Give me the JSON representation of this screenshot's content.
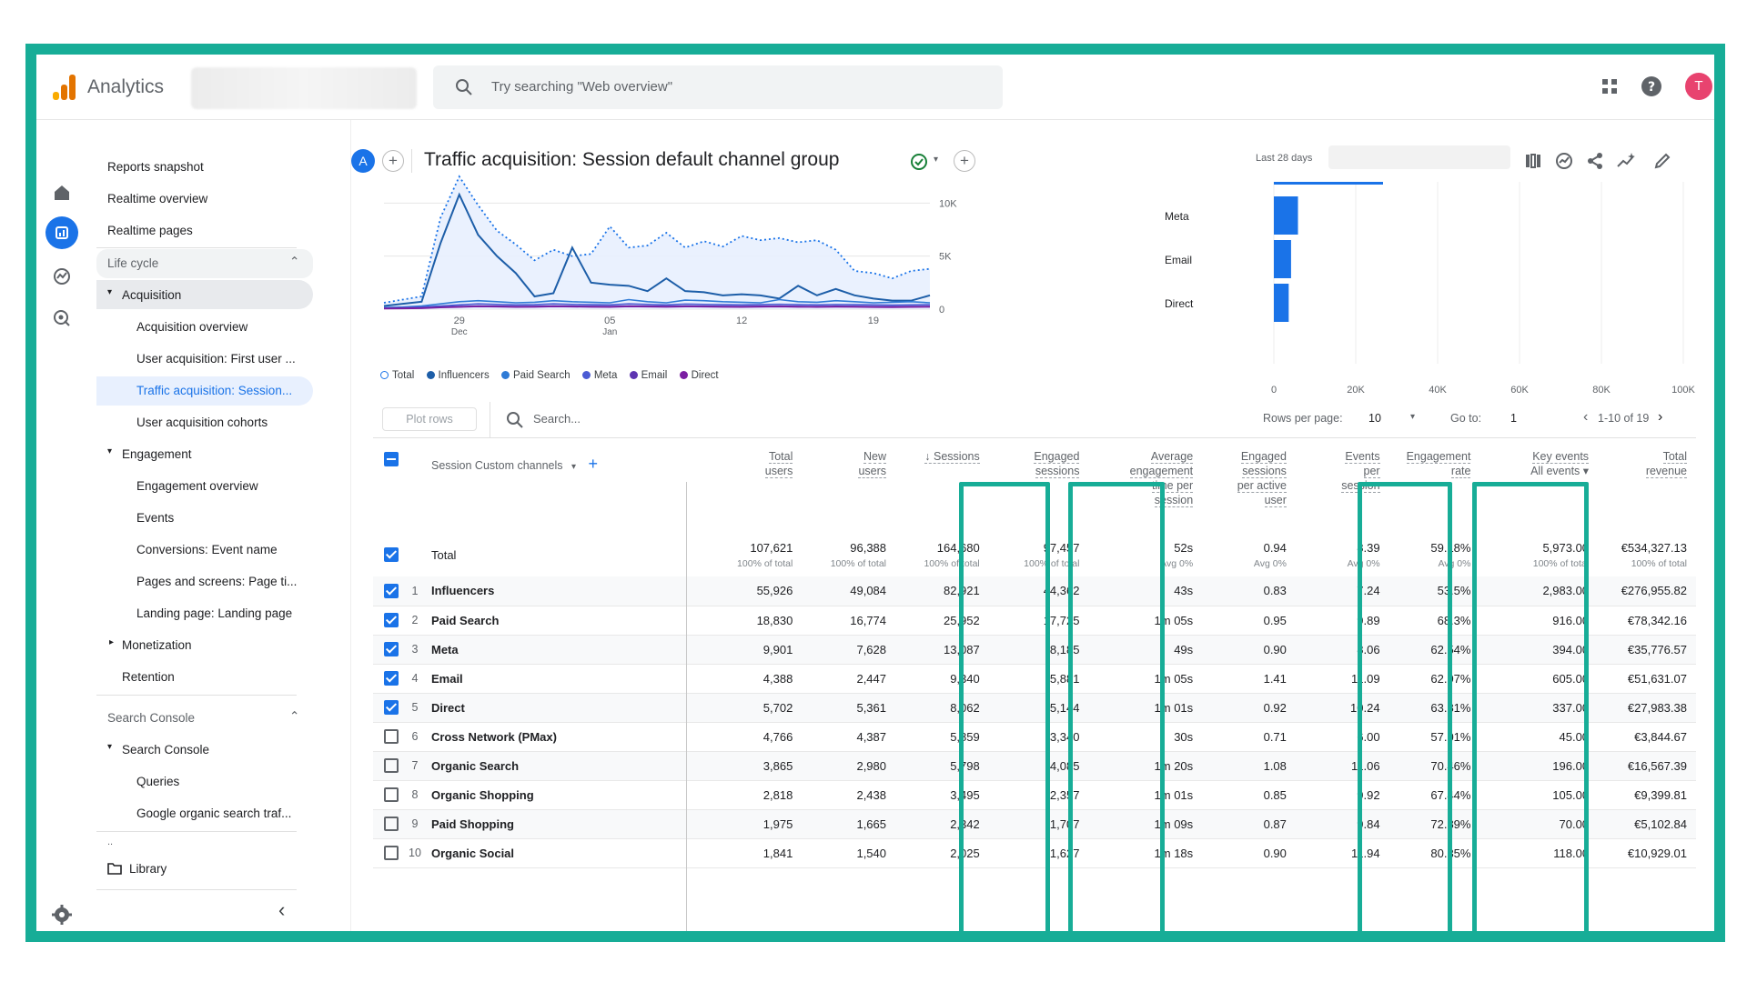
{
  "app": {
    "name": "Analytics",
    "avatar_initial": "T"
  },
  "search": {
    "placeholder": "Try searching \"Web overview\""
  },
  "sidebar": {
    "top_items": [
      "Reports snapshot",
      "Realtime overview",
      "Realtime pages"
    ],
    "lifecycle_label": "Life cycle",
    "acquisition": {
      "label": "Acquisition",
      "items": [
        "Acquisition overview",
        "User acquisition: First user ...",
        "Traffic acquisition: Session...",
        "User acquisition cohorts"
      ]
    },
    "engagement": {
      "label": "Engagement",
      "items": [
        "Engagement overview",
        "Events",
        "Conversions: Event name",
        "Pages and screens: Page ti...",
        "Landing page: Landing page"
      ]
    },
    "monetization_label": "Monetization",
    "retention_label": "Retention",
    "search_console_section": "Search Console",
    "search_console": {
      "label": "Search Console",
      "items": [
        "Queries",
        "Google organic search traf..."
      ]
    },
    "more": "..",
    "library": "Library",
    "collapse": "‹"
  },
  "header": {
    "chip": "A",
    "title": "Traffic acquisition: Session default channel group",
    "date_label": "Last 28 days"
  },
  "chart_data": [
    {
      "type": "area",
      "x_ticks": [
        "29\nDec",
        "05\nJan",
        "12",
        "19"
      ],
      "x_tick_labels": {
        "d1": "29",
        "m1": "Dec",
        "d2": "05",
        "m2": "Jan",
        "d3": "12",
        "d4": "19"
      },
      "y_ticks": [
        "10K",
        "5K",
        "0"
      ],
      "ylim": [
        0,
        12000
      ],
      "series": [
        {
          "name": "Total",
          "values": [
            600,
            900,
            1200,
            8600,
            12500,
            9800,
            7400,
            6100,
            4600,
            5600,
            5000,
            5200,
            7800,
            5800,
            6000,
            7200,
            5800,
            6400,
            5900,
            6900,
            6500,
            6700,
            6300,
            6500,
            5600,
            3600,
            3400,
            2900,
            3600,
            3800
          ]
        },
        {
          "name": "Influencers",
          "values": [
            300,
            500,
            700,
            6200,
            10800,
            7000,
            5000,
            3400,
            1200,
            1500,
            5800,
            2500,
            2300,
            2200,
            1700,
            2900,
            1700,
            1600,
            1300,
            1400,
            1300,
            1000,
            2200,
            1300,
            1900,
            1300,
            1000,
            800,
            800,
            1300
          ]
        },
        {
          "name": "Paid Search",
          "values": [
            150,
            200,
            300,
            500,
            700,
            800,
            700,
            600,
            650,
            800,
            700,
            650,
            600,
            900,
            700,
            600,
            850,
            800,
            700,
            650,
            600,
            900,
            700,
            650,
            800,
            700,
            600,
            650,
            700,
            600
          ]
        },
        {
          "name": "Meta",
          "values": [
            100,
            150,
            200,
            300,
            400,
            500,
            450,
            400,
            420,
            500,
            450,
            420,
            400,
            500,
            450,
            400,
            480,
            450,
            420,
            400,
            430,
            460,
            420,
            400,
            440,
            420,
            400,
            380,
            400,
            420
          ]
        },
        {
          "name": "Email",
          "values": [
            80,
            100,
            120,
            200,
            250,
            300,
            280,
            250,
            260,
            300,
            280,
            260,
            250,
            300,
            280,
            260,
            290,
            280,
            260,
            250,
            270,
            290,
            260,
            250,
            270,
            260,
            240,
            230,
            250,
            260
          ]
        },
        {
          "name": "Direct",
          "values": [
            50,
            60,
            80,
            150,
            200,
            250,
            230,
            200,
            210,
            250,
            230,
            210,
            200,
            250,
            230,
            210,
            240,
            230,
            210,
            200,
            220,
            240,
            210,
            200,
            220,
            210,
            190,
            180,
            200,
            210
          ]
        }
      ]
    },
    {
      "type": "bar",
      "orientation": "horizontal",
      "categories": [
        "Meta",
        "Email",
        "Direct"
      ],
      "values": [
        13087,
        9340,
        8062
      ],
      "x_ticks": [
        "0",
        "20K",
        "40K",
        "60K",
        "80K",
        "100K"
      ],
      "xlim": [
        0,
        100000
      ]
    }
  ],
  "table": {
    "plot_rows": "Plot rows",
    "search_placeholder": "Search...",
    "rows_per_page_label": "Rows per page:",
    "rows_per_page": "10",
    "goto_label": "Go to:",
    "goto_value": "1",
    "range": "1-10 of 19",
    "dimension_label": "Session Custom channels",
    "columns": [
      {
        "l1": "Total",
        "l2": "users",
        "l3": "",
        "l4": ""
      },
      {
        "l1": "New",
        "l2": "users",
        "l3": "",
        "l4": ""
      },
      {
        "l1": "↓ Sessions",
        "l2": "",
        "l3": "",
        "l4": ""
      },
      {
        "l1": "Engaged",
        "l2": "sessions",
        "l3": "",
        "l4": ""
      },
      {
        "l1": "Average",
        "l2": "engagement",
        "l3": "time per",
        "l4": "session"
      },
      {
        "l1": "Engaged",
        "l2": "sessions",
        "l3": "per active",
        "l4": "user"
      },
      {
        "l1": "Events",
        "l2": "per",
        "l3": "session",
        "l4": ""
      },
      {
        "l1": "Engagement",
        "l2": "rate",
        "l3": "",
        "l4": ""
      },
      {
        "l1": "Key events",
        "l2": "All events ▾",
        "l3": "",
        "l4": ""
      },
      {
        "l1": "Total",
        "l2": "revenue",
        "l3": "",
        "l4": ""
      }
    ],
    "total": {
      "label": "Total",
      "values": [
        "107,621",
        "96,388",
        "164,680",
        "97,457",
        "52s",
        "0.94",
        "8.39",
        "59.18%",
        "5,973.00",
        "€534,327.13"
      ],
      "subs": [
        "100% of total",
        "100% of total",
        "100% of total",
        "100% of total",
        "Avg 0%",
        "Avg 0%",
        "Avg 0%",
        "Avg 0%",
        "100% of total",
        "100% of total"
      ]
    },
    "rows": [
      {
        "n": "1",
        "name": "Influencers",
        "checked": true,
        "v": [
          "55,926",
          "49,084",
          "82,921",
          "44,362",
          "43s",
          "0.83",
          "7.24",
          "53.5%",
          "2,983.00",
          "€276,955.82"
        ]
      },
      {
        "n": "2",
        "name": "Paid Search",
        "checked": true,
        "v": [
          "18,830",
          "16,774",
          "25,952",
          "17,725",
          "1m 05s",
          "0.95",
          "9.89",
          "68.3%",
          "916.00",
          "€78,342.16"
        ]
      },
      {
        "n": "3",
        "name": "Meta",
        "checked": true,
        "v": [
          "9,901",
          "7,628",
          "13,087",
          "8,185",
          "49s",
          "0.90",
          "8.06",
          "62.54%",
          "394.00",
          "€35,776.57"
        ]
      },
      {
        "n": "4",
        "name": "Email",
        "checked": true,
        "v": [
          "4,388",
          "2,447",
          "9,340",
          "5,881",
          "1m 05s",
          "1.41",
          "11.09",
          "62.97%",
          "605.00",
          "€51,631.07"
        ]
      },
      {
        "n": "5",
        "name": "Direct",
        "checked": true,
        "v": [
          "5,702",
          "5,361",
          "8,062",
          "5,144",
          "1m 01s",
          "0.92",
          "10.24",
          "63.81%",
          "337.00",
          "€27,983.38"
        ]
      },
      {
        "n": "6",
        "name": "Cross Network (PMax)",
        "checked": false,
        "v": [
          "4,766",
          "4,387",
          "5,859",
          "3,340",
          "30s",
          "0.71",
          "6.00",
          "57.01%",
          "45.00",
          "€3,844.67"
        ]
      },
      {
        "n": "7",
        "name": "Organic Search",
        "checked": false,
        "v": [
          "3,865",
          "2,980",
          "5,798",
          "4,085",
          "1m 20s",
          "1.08",
          "11.06",
          "70.46%",
          "196.00",
          "€16,567.39"
        ]
      },
      {
        "n": "8",
        "name": "Organic Shopping",
        "checked": false,
        "v": [
          "2,818",
          "2,438",
          "3,495",
          "2,357",
          "1m 01s",
          "0.85",
          "9.92",
          "67.44%",
          "105.00",
          "€9,399.81"
        ]
      },
      {
        "n": "9",
        "name": "Paid Shopping",
        "checked": false,
        "v": [
          "1,975",
          "1,665",
          "2,342",
          "1,707",
          "1m 09s",
          "0.87",
          "9.84",
          "72.89%",
          "70.00",
          "€5,102.84"
        ]
      },
      {
        "n": "10",
        "name": "Organic Social",
        "checked": false,
        "v": [
          "1,841",
          "1,540",
          "2,025",
          "1,627",
          "1m 18s",
          "0.90",
          "11.94",
          "80.35%",
          "118.00",
          "€10,929.01"
        ]
      }
    ]
  },
  "colors": {
    "highlight": "#17ad97",
    "primary": "#1a73e8",
    "series": [
      "#1a73e8",
      "#1d5ea8",
      "#2f7bd6",
      "#4b5bd4",
      "#5e35b1",
      "#7b1fa2"
    ]
  }
}
